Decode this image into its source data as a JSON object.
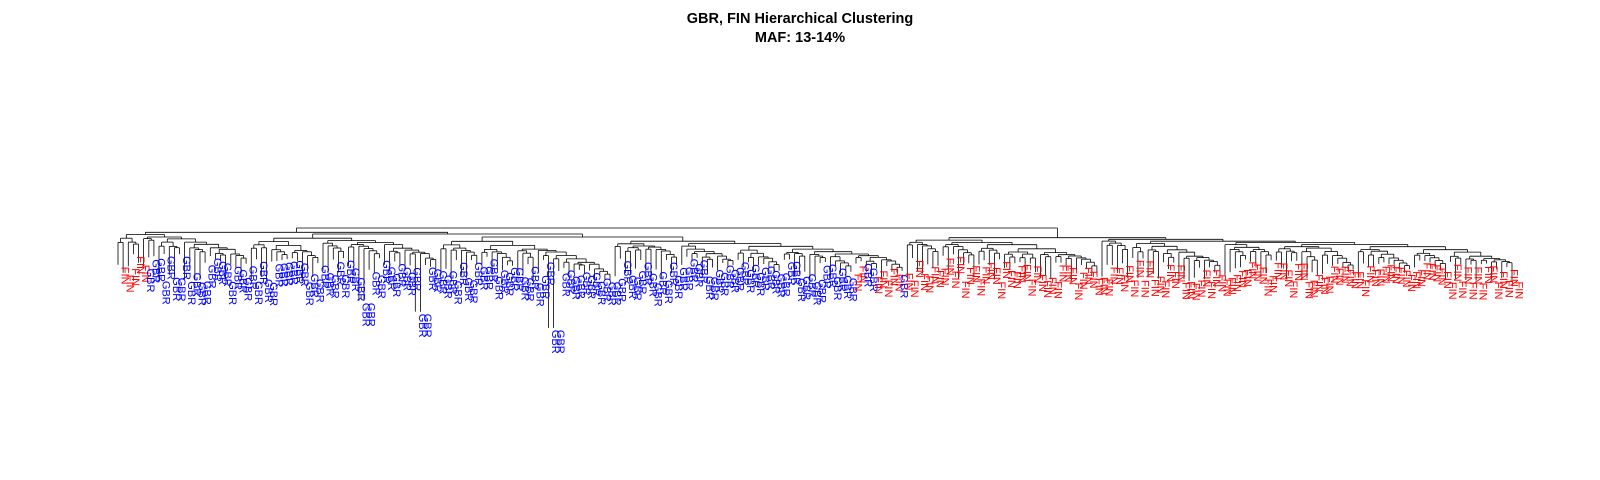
{
  "chart_data": {
    "type": "dendrogram",
    "title": "GBR, FIN Hierarchical Clustering",
    "subtitle": "MAF: 13-14%",
    "colors": {
      "GBR": "#0000ff",
      "FIN": "#ff0000",
      "branch": "#000000"
    },
    "leaves": [
      "FIN",
      "FIN",
      "FIN",
      "FIN",
      "FIN",
      "GBR",
      "GBR",
      "GBR",
      "GBR",
      "GBR",
      "GBR",
      "GBR",
      "GBR",
      "GBR",
      "GBR",
      "GBR",
      "GBR",
      "GBR",
      "GBR",
      "GBR",
      "GBR",
      "GBR",
      "GBR",
      "GBR",
      "GBR",
      "GBR",
      "GBR",
      "GBR",
      "GBR",
      "GBR",
      "GBR",
      "GBR",
      "GBR",
      "GBR",
      "GBR",
      "GBR",
      "GBR",
      "GBR",
      "GBR",
      "GBR",
      "GBR",
      "GBR",
      "GBR",
      "GBR",
      "GBR",
      "GBR",
      "GBR",
      "GBR",
      "GBR",
      "GBR",
      "GBR",
      "GBR",
      "GBR",
      "GBR",
      "GBR",
      "GBR",
      "GBR",
      "GBR",
      "GBR",
      "GBR",
      "GBR",
      "GBR",
      "GBR",
      "GBR",
      "GBR",
      "GBR",
      "GBR",
      "GBR",
      "GBR",
      "GBR",
      "GBR",
      "GBR",
      "GBR",
      "GBR",
      "GBR",
      "GBR",
      "GBR",
      "GBR",
      "GBR",
      "GBR",
      "GBR",
      "GBR",
      "GBR",
      "GBR",
      "GBR",
      "GBR",
      "GBR",
      "GBR",
      "GBR",
      "GBR",
      "GBR",
      "GBR",
      "GBR",
      "GBR",
      "GBR",
      "GBR",
      "GBR",
      "GBR",
      "GBR",
      "GBR",
      "GBR",
      "GBR",
      "GBR",
      "GBR",
      "GBR",
      "GBR",
      "GBR",
      "GBR",
      "GBR",
      "GBR",
      "GBR",
      "GBR",
      "GBR",
      "GBR",
      "GBR",
      "GBR",
      "GBR",
      "GBR",
      "GBR",
      "GBR",
      "GBR",
      "GBR",
      "GBR",
      "GBR",
      "GBR",
      "GBR",
      "GBR",
      "GBR",
      "GBR",
      "GBR",
      "GBR",
      "GBR",
      "GBR",
      "GBR",
      "GBR",
      "GBR",
      "GBR",
      "GBR",
      "GBR",
      "GBR",
      "GBR",
      "GBR",
      "GBR",
      "FIN",
      "FIN",
      "GBR",
      "GBR",
      "FIN",
      "FIN",
      "FIN",
      "FIN",
      "FIN",
      "GBR",
      "FIN",
      "FIN",
      "FIN",
      "FIN",
      "FIN",
      "FIN",
      "FIN",
      "FIN",
      "FIN",
      "FIN",
      "FIN",
      "FIN",
      "FIN",
      "FIN",
      "FIN",
      "FIN",
      "FIN",
      "FIN",
      "FIN",
      "FIN",
      "FIN",
      "FIN",
      "FIN",
      "FIN",
      "FIN",
      "FIN",
      "FIN",
      "FIN",
      "FIN",
      "FIN",
      "FIN",
      "FIN",
      "FIN",
      "FIN",
      "FIN",
      "FIN",
      "FIN",
      "FIN",
      "FIN",
      "FIN",
      "FIN",
      "FIN",
      "FIN",
      "FIN",
      "FIN",
      "FIN",
      "FIN",
      "FIN",
      "FIN",
      "FIN",
      "FIN",
      "FIN",
      "FIN",
      "FIN",
      "FIN",
      "FIN",
      "FIN",
      "FIN",
      "FIN",
      "FIN",
      "FIN",
      "FIN",
      "FIN",
      "FIN",
      "FIN",
      "FIN",
      "FIN",
      "FIN",
      "FIN",
      "FIN",
      "FIN",
      "FIN",
      "FIN",
      "FIN",
      "FIN",
      "FIN",
      "FIN",
      "FIN",
      "FIN",
      "FIN",
      "FIN",
      "FIN",
      "FIN",
      "FIN",
      "FIN",
      "FIN",
      "FIN",
      "FIN",
      "FIN",
      "FIN",
      "FIN",
      "FIN",
      "FIN",
      "FIN",
      "FIN",
      "FIN",
      "FIN",
      "FIN",
      "FIN",
      "FIN",
      "FIN",
      "FIN",
      "FIN",
      "FIN",
      "FIN",
      "FIN",
      "FIN",
      "FIN",
      "FIN",
      "FIN",
      "FIN",
      "FIN",
      "FIN",
      "FIN",
      "FIN",
      "FIN",
      "FIN",
      "FIN",
      "FIN",
      "FIN"
    ],
    "main_split": 154,
    "outlier_pairs": [
      {
        "index": 47,
        "drop": 0.35
      },
      {
        "index": 58,
        "drop": 0.55
      },
      {
        "index": 84,
        "drop": 0.85
      }
    ]
  }
}
